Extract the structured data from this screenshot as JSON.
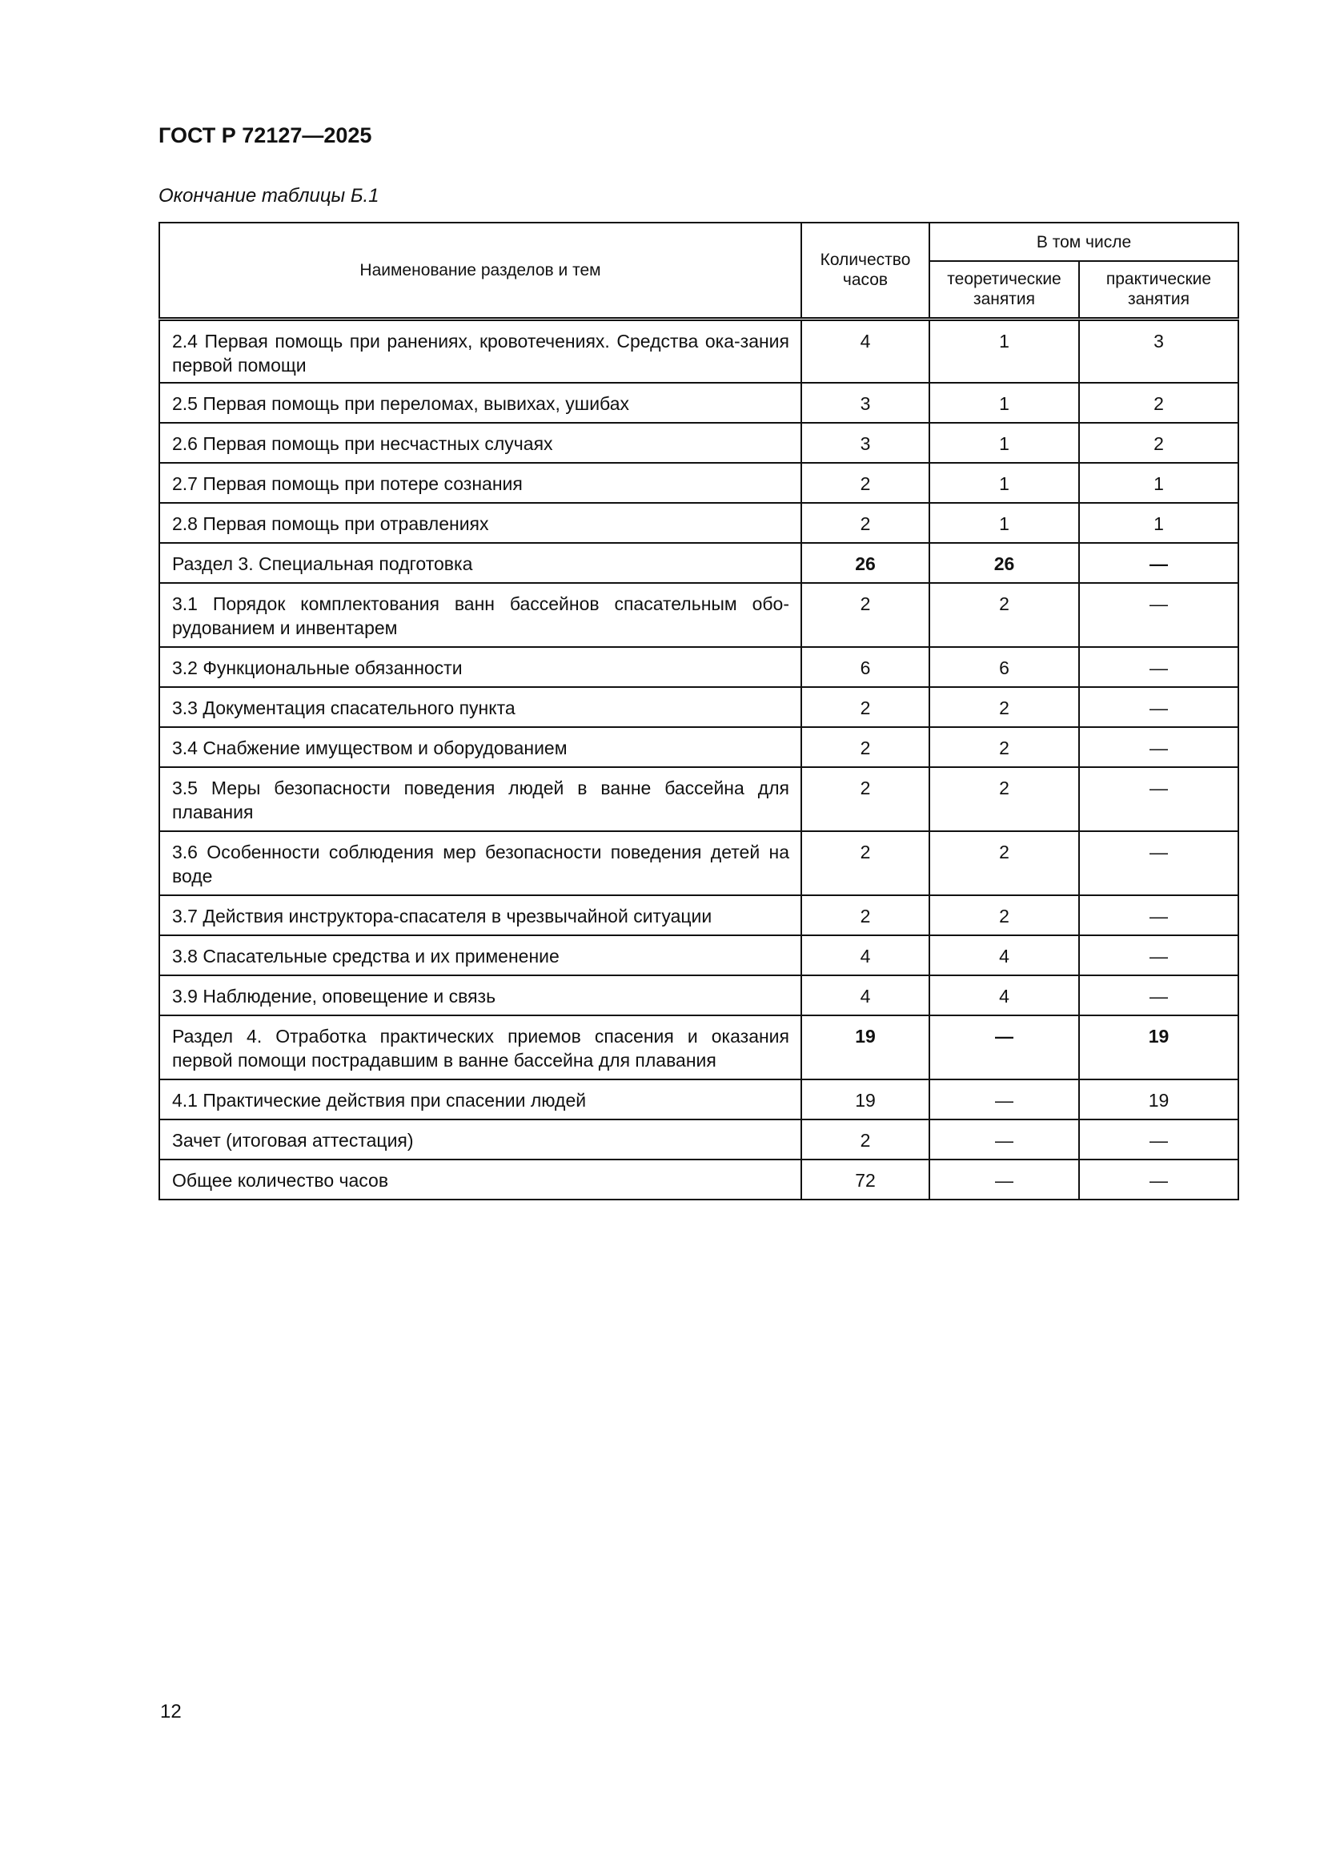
{
  "document": {
    "code": "ГОСТ Р 72127—2025",
    "caption": "Окончание таблицы Б.1",
    "page_number": "12"
  },
  "table": {
    "headers": {
      "name": "Наименование разделов и тем",
      "hours": "Количество часов",
      "including": "В том числе",
      "theory": "теоретические занятия",
      "practice": "практические занятия"
    },
    "rows": [
      {
        "name": "2.4 Первая помощь при ранениях, кровотечениях. Средства ока-зания первой помощи",
        "hours": "4",
        "theory": "1",
        "practice": "3",
        "bold": false,
        "tall": true
      },
      {
        "name": "2.5 Первая помощь при переломах, вывихах, ушибах",
        "hours": "3",
        "theory": "1",
        "practice": "2",
        "bold": false
      },
      {
        "name": "2.6 Первая помощь при несчастных случаях",
        "hours": "3",
        "theory": "1",
        "practice": "2",
        "bold": false
      },
      {
        "name": "2.7 Первая помощь при потере сознания",
        "hours": "2",
        "theory": "1",
        "practice": "1",
        "bold": false
      },
      {
        "name": "2.8 Первая помощь при отравлениях",
        "hours": "2",
        "theory": "1",
        "practice": "1",
        "bold": false
      },
      {
        "name": "Раздел 3. Специальная подготовка",
        "hours": "26",
        "theory": "26",
        "practice": "—",
        "bold": true
      },
      {
        "name": "3.1 Порядок комплектования ванн бассейнов спасательным обо-рудованием и инвентарем",
        "hours": "2",
        "theory": "2",
        "practice": "—",
        "bold": false,
        "tall": true
      },
      {
        "name": "3.2 Функциональные обязанности",
        "hours": "6",
        "theory": "6",
        "practice": "—",
        "bold": false
      },
      {
        "name": "3.3 Документация спасательного пункта",
        "hours": "2",
        "theory": "2",
        "practice": "—",
        "bold": false
      },
      {
        "name": "3.4 Снабжение имуществом и оборудованием",
        "hours": "2",
        "theory": "2",
        "practice": "—",
        "bold": false
      },
      {
        "name": "3.5 Меры безопасности поведения людей в ванне бассейна для плавания",
        "hours": "2",
        "theory": "2",
        "practice": "—",
        "bold": false,
        "tall": true
      },
      {
        "name": "3.6 Особенности соблюдения мер безопасности поведения детей на воде",
        "hours": "2",
        "theory": "2",
        "practice": "—",
        "bold": false,
        "tall": true
      },
      {
        "name": "3.7 Действия инструктора-спасателя в чрезвычайной ситуации",
        "hours": "2",
        "theory": "2",
        "practice": "—",
        "bold": false
      },
      {
        "name": "3.8 Спасательные средства и их применение",
        "hours": "4",
        "theory": "4",
        "practice": "—",
        "bold": false
      },
      {
        "name": "3.9 Наблюдение, оповещение и связь",
        "hours": "4",
        "theory": "4",
        "practice": "—",
        "bold": false
      },
      {
        "name": "Раздел 4. Отработка практических приемов спасения и оказания первой помощи пострадавшим в ванне бассейна для плавания",
        "hours": "19",
        "theory": "—",
        "practice": "19",
        "bold": true,
        "tall": true
      },
      {
        "name": "4.1 Практические действия при спасении людей",
        "hours": "19",
        "theory": "—",
        "practice": "19",
        "bold": false
      },
      {
        "name": "Зачет (итоговая аттестация)",
        "hours": "2",
        "theory": "—",
        "practice": "—",
        "bold": false
      },
      {
        "name": "Общее количество часов",
        "hours": "72",
        "theory": "—",
        "practice": "—",
        "bold": false
      }
    ]
  }
}
